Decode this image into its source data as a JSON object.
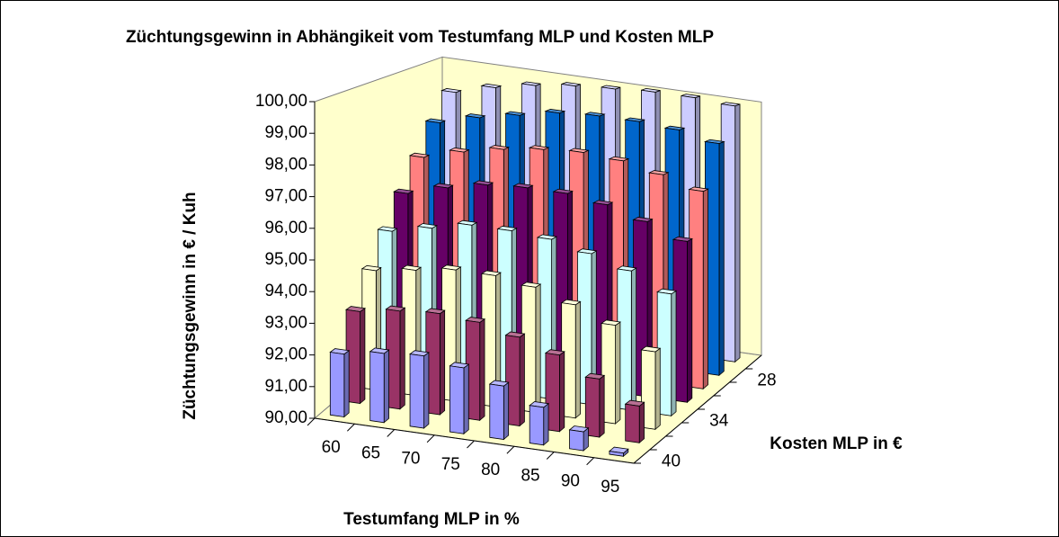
{
  "chart_data": {
    "type": "bar3d",
    "title": "Züchtungsgewinn in Abhängikeit vom Testumfang MLP und Kosten MLP",
    "ylabel": "Züchtungsgewinn in € / Kuh",
    "xlabel": "Testumfang MLP in %",
    "zlabel": "Kosten MLP in €",
    "categories": [
      "60",
      "65",
      "70",
      "75",
      "80",
      "85",
      "90",
      "95"
    ],
    "ylim": [
      90,
      100
    ],
    "yticks": [
      {
        "value": 90,
        "label": "90,00"
      },
      {
        "value": 91,
        "label": "91,00"
      },
      {
        "value": 92,
        "label": "92,00"
      },
      {
        "value": 93,
        "label": "93,00"
      },
      {
        "value": 94,
        "label": "94,00"
      },
      {
        "value": 95,
        "label": "95,00"
      },
      {
        "value": 96,
        "label": "96,00"
      },
      {
        "value": 97,
        "label": "97,00"
      },
      {
        "value": 98,
        "label": "98,00"
      },
      {
        "value": 99,
        "label": "99,00"
      },
      {
        "value": 100,
        "label": "100,00"
      }
    ],
    "wall_color": "#ffffcc",
    "series": [
      {
        "name": "40",
        "color": "#9999ff",
        "values": [
          92.0,
          92.2,
          92.3,
          92.1,
          91.7,
          91.2,
          90.6,
          90.1
        ]
      },
      {
        "name": null,
        "color": "#993366",
        "values": [
          93.0,
          93.2,
          93.3,
          93.2,
          92.9,
          92.5,
          91.9,
          91.2
        ]
      },
      {
        "name": null,
        "color": "#ffffcc",
        "values": [
          94.0,
          94.2,
          94.4,
          94.4,
          94.2,
          93.8,
          93.3,
          92.6
        ]
      },
      {
        "name": "34",
        "color": "#ccffff",
        "values": [
          95.0,
          95.3,
          95.6,
          95.6,
          95.5,
          95.2,
          94.8,
          94.2
        ]
      },
      {
        "name": null,
        "color": "#660066",
        "values": [
          96.0,
          96.4,
          96.7,
          96.8,
          96.8,
          96.6,
          96.2,
          95.7
        ]
      },
      {
        "name": null,
        "color": "#ff8080",
        "values": [
          97.0,
          97.4,
          97.7,
          97.9,
          98.0,
          97.9,
          97.6,
          97.2
        ]
      },
      {
        "name": "28",
        "color": "#0066cc",
        "values": [
          98.0,
          98.4,
          98.7,
          99.0,
          99.1,
          99.1,
          99.0,
          98.7
        ]
      },
      {
        "name": null,
        "color": "#ccccff",
        "values": [
          98.9,
          99.3,
          99.6,
          99.8,
          99.9,
          100.0,
          100.0,
          99.9
        ]
      }
    ]
  }
}
